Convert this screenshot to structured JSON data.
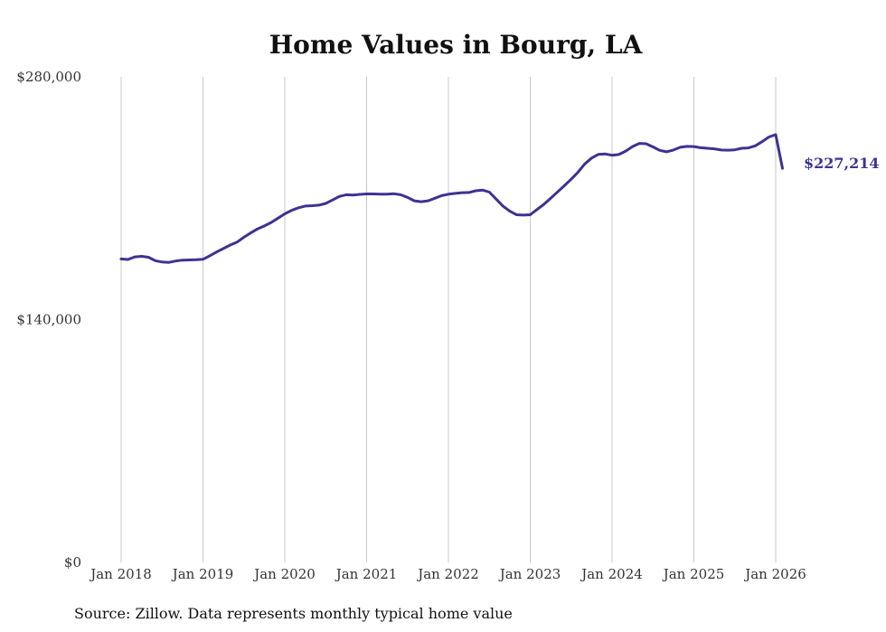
{
  "chart_data": {
    "type": "line",
    "title": "Home Values in Bourg, LA",
    "xlabel": "",
    "ylabel": "",
    "ylim": [
      0,
      280000
    ],
    "y_ticks": [
      "$0",
      "$140,000",
      "$280,000"
    ],
    "x_ticks": [
      "Jan 2018",
      "Jan 2019",
      "Jan 2020",
      "Jan 2021",
      "Jan 2022",
      "Jan 2023",
      "Jan 2024",
      "Jan 2025",
      "Jan 2026"
    ],
    "grid": "vertical",
    "legend": "none",
    "end_label": "$227,214",
    "source": "Source: Zillow. Data represents monthly typical home value",
    "line_color": "#3d3391",
    "series": [
      {
        "x_start": "Jan 2018",
        "frequency": "monthly",
        "values": [
          175000,
          174700,
          176200,
          176500,
          176000,
          174000,
          173200,
          173000,
          173800,
          174300,
          174400,
          174500,
          174800,
          176800,
          179000,
          181000,
          183000,
          184700,
          187500,
          190000,
          192300,
          194000,
          196000,
          198500,
          201000,
          203000,
          204500,
          205500,
          205700,
          206000,
          207000,
          209000,
          211000,
          212000,
          211800,
          212200,
          212500,
          212500,
          212300,
          212300,
          212600,
          212000,
          210500,
          208500,
          208000,
          208500,
          210000,
          211500,
          212300,
          212800,
          213200,
          213300,
          214300,
          214700,
          213500,
          209500,
          205500,
          202500,
          200500,
          200300,
          200500,
          203500,
          206500,
          210000,
          213600,
          217200,
          221000,
          225000,
          229800,
          233200,
          235300,
          235500,
          234800,
          235200,
          237200,
          239800,
          241600,
          241400,
          239600,
          237600,
          236800,
          237800,
          239400,
          239900,
          239800,
          239100,
          238800,
          238500,
          237800,
          237700,
          237900,
          238800,
          239000,
          240200,
          242600,
          245300,
          246700,
          227214
        ]
      }
    ]
  }
}
